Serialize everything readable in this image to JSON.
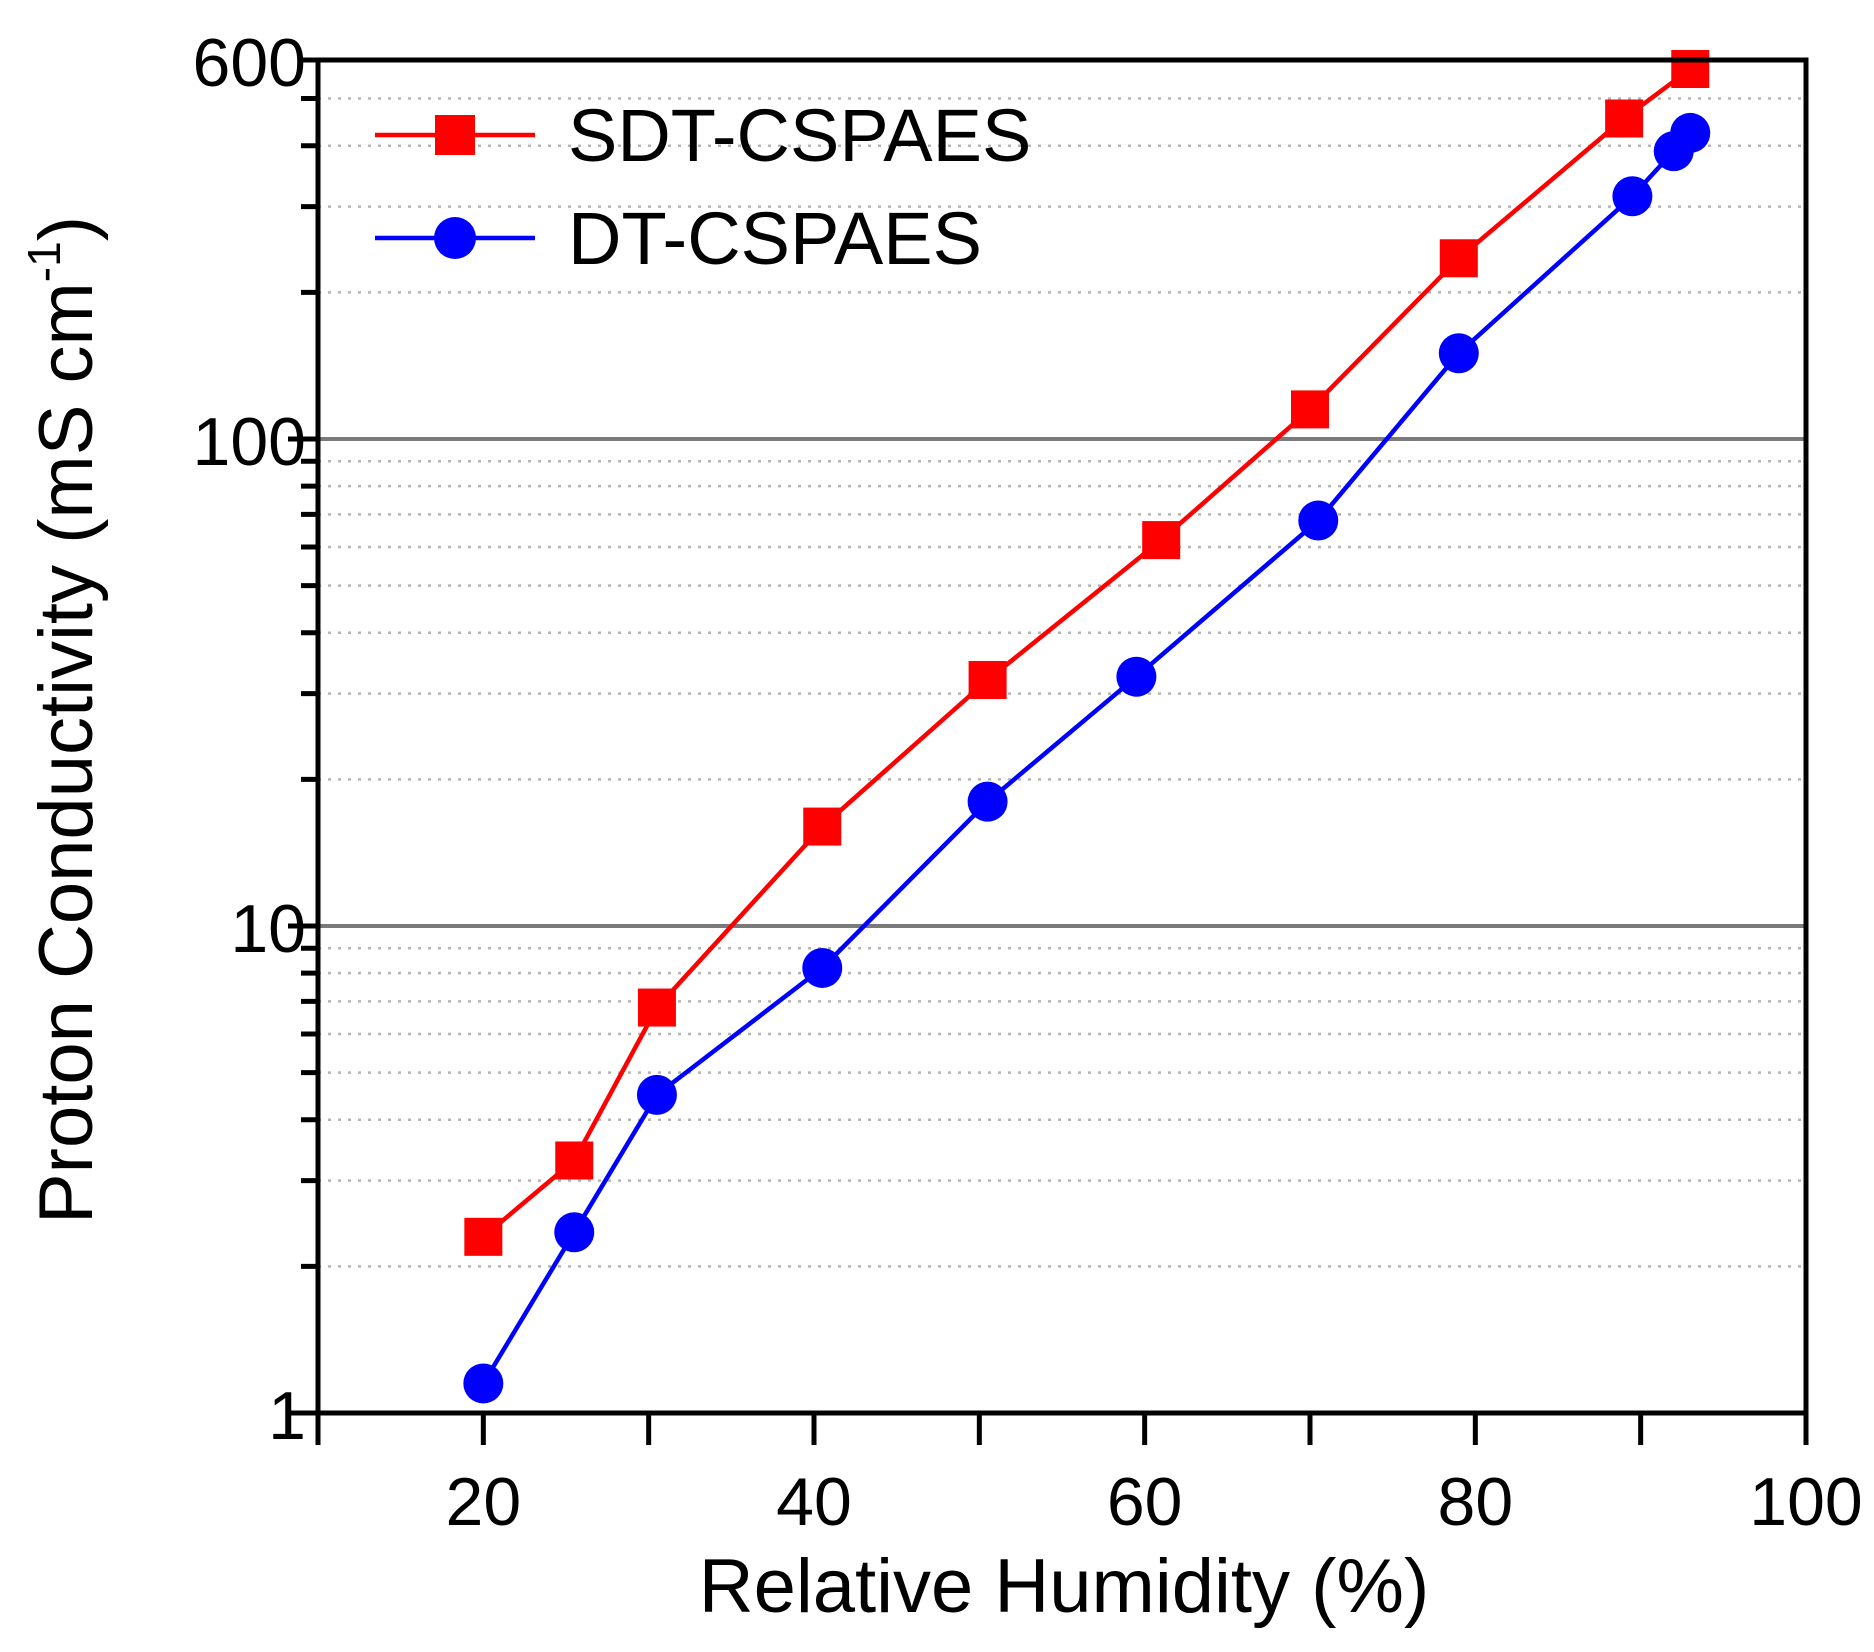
{
  "chart_data": {
    "type": "line",
    "x_label": "Relative Humidity (%)",
    "y_label_main": "Proton Conductivity (mS cm",
    "y_label_sup": "-1",
    "y_label_close": ")",
    "x_range": [
      10,
      100
    ],
    "y_range": [
      1,
      600
    ],
    "y_scale": "log",
    "x_ticks": [
      {
        "value": 20,
        "label": "20"
      },
      {
        "value": 40,
        "label": "40"
      },
      {
        "value": 60,
        "label": "60"
      },
      {
        "value": 80,
        "label": "80"
      },
      {
        "value": 100,
        "label": "100"
      }
    ],
    "y_ticks": [
      {
        "value": 1,
        "label": "1"
      },
      {
        "value": 10,
        "label": "10"
      },
      {
        "value": 100,
        "label": "100"
      },
      {
        "value": 600,
        "label": "600"
      }
    ],
    "grid": "major solid, minor dotted",
    "legend_position": "top-left",
    "series": [
      {
        "name": "SDT-CSPAES",
        "color": "#ff0000",
        "marker": "square",
        "points": [
          {
            "x": 20,
            "y": 2.3
          },
          {
            "x": 25.5,
            "y": 3.3
          },
          {
            "x": 30.5,
            "y": 6.8
          },
          {
            "x": 40.5,
            "y": 16
          },
          {
            "x": 50.5,
            "y": 32
          },
          {
            "x": 61,
            "y": 62
          },
          {
            "x": 70,
            "y": 115
          },
          {
            "x": 79,
            "y": 235
          },
          {
            "x": 89,
            "y": 455
          },
          {
            "x": 93,
            "y": 575
          }
        ]
      },
      {
        "name": "DT-CSPAES",
        "color": "#0000ff",
        "marker": "circle",
        "points": [
          {
            "x": 20,
            "y": 1.15
          },
          {
            "x": 25.5,
            "y": 2.35
          },
          {
            "x": 30.5,
            "y": 4.5
          },
          {
            "x": 40.5,
            "y": 8.2
          },
          {
            "x": 50.5,
            "y": 18
          },
          {
            "x": 59.5,
            "y": 32.5
          },
          {
            "x": 70.5,
            "y": 68
          },
          {
            "x": 79,
            "y": 150
          },
          {
            "x": 89.5,
            "y": 315
          },
          {
            "x": 92,
            "y": 390
          },
          {
            "x": 93,
            "y": 425
          }
        ]
      }
    ]
  }
}
